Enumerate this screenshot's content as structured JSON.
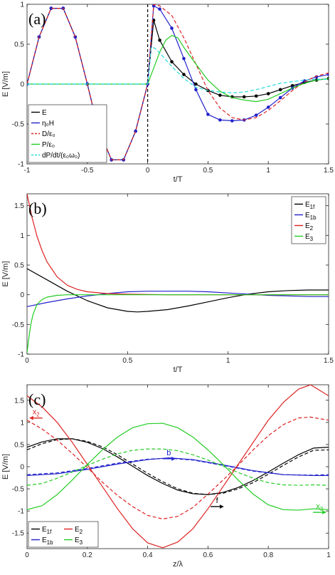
{
  "chart_data": [
    {
      "panel_label": "(a)",
      "type": "line",
      "xlabel": "t/T",
      "ylabel": "E [V/m]",
      "xlim": [
        -1,
        1.5
      ],
      "ylim": [
        -1,
        1
      ],
      "xticks": [
        "-1",
        "-0.5",
        "0",
        "0.5",
        "1",
        "1.5"
      ],
      "yticks": [
        "-1",
        "-0.5",
        "0",
        "0.5",
        "1"
      ],
      "grid": false,
      "legend_position": "lower-left",
      "vertical_marker": {
        "x": 0,
        "style": "dashed",
        "color": "#000000"
      },
      "series": [
        {
          "name": "E",
          "color": "#000000",
          "style": "solid",
          "marker": "dot",
          "x": [
            -1,
            -0.9,
            -0.8,
            -0.7,
            -0.6,
            -0.5,
            -0.45,
            -0.4,
            -0.3,
            -0.2,
            -0.1,
            0,
            0.05,
            0.1,
            0.2,
            0.3,
            0.4,
            0.5,
            0.6,
            0.7,
            0.8,
            0.9,
            1,
            1.1,
            1.2,
            1.3,
            1.4,
            1.5
          ],
          "y": [
            0,
            0.59,
            0.95,
            0.95,
            0.59,
            0,
            -0.31,
            -0.59,
            -0.95,
            -0.95,
            -0.59,
            0,
            0.8,
            0.55,
            0.28,
            0.12,
            0,
            -0.08,
            -0.14,
            -0.16,
            -0.16,
            -0.15,
            -0.12,
            -0.07,
            -0.02,
            0.02,
            0.05,
            0.07
          ]
        },
        {
          "name": "η₀H",
          "color": "#2222cc",
          "style": "solid",
          "marker": "dot",
          "x": [
            -1,
            -0.9,
            -0.8,
            -0.7,
            -0.6,
            -0.5,
            -0.45,
            -0.4,
            -0.3,
            -0.2,
            -0.1,
            0,
            0.05,
            0.1,
            0.2,
            0.3,
            0.4,
            0.5,
            0.6,
            0.7,
            0.8,
            0.9,
            1,
            1.1,
            1.2,
            1.3,
            1.4,
            1.5
          ],
          "y": [
            0,
            0.59,
            0.95,
            0.95,
            0.59,
            0,
            -0.31,
            -0.59,
            -0.95,
            -0.95,
            -0.59,
            0,
            0.98,
            0.94,
            0.7,
            0.32,
            -0.07,
            -0.38,
            -0.45,
            -0.46,
            -0.45,
            -0.39,
            -0.29,
            -0.17,
            -0.05,
            0.04,
            0.09,
            0.12
          ]
        },
        {
          "name": "D/ε₀",
          "color": "#dd2222",
          "style": "dashed",
          "x": [
            -1,
            -0.9,
            -0.8,
            -0.7,
            -0.6,
            -0.5,
            -0.45,
            -0.4,
            -0.3,
            -0.2,
            -0.1,
            0,
            0.05,
            0.1,
            0.2,
            0.3,
            0.4,
            0.5,
            0.6,
            0.7,
            0.8,
            0.9,
            1,
            1.1,
            1.2,
            1.3,
            1.4,
            1.5
          ],
          "y": [
            0,
            0.59,
            0.95,
            0.95,
            0.59,
            0,
            -0.31,
            -0.59,
            -0.95,
            -0.95,
            -0.59,
            0,
            1.0,
            0.98,
            0.86,
            0.58,
            0.25,
            -0.08,
            -0.3,
            -0.42,
            -0.45,
            -0.42,
            -0.33,
            -0.21,
            -0.08,
            0.03,
            0.1,
            0.14
          ]
        },
        {
          "name": "P/ε₀",
          "color": "#22cc22",
          "style": "solid",
          "x": [
            -1,
            0,
            0.05,
            0.1,
            0.15,
            0.2,
            0.25,
            0.3,
            0.4,
            0.5,
            0.6,
            0.7,
            0.8,
            0.9,
            1,
            1.1,
            1.2,
            1.3,
            1.4,
            1.5
          ],
          "y": [
            0,
            0,
            0.2,
            0.4,
            0.55,
            0.61,
            0.58,
            0.46,
            0.25,
            0.05,
            -0.09,
            -0.17,
            -0.2,
            -0.22,
            -0.19,
            -0.12,
            -0.05,
            0.01,
            0.05,
            0.07
          ]
        },
        {
          "name": "dP/dt/(ε₀ω₀)",
          "color": "#22dddd",
          "style": "dashed",
          "x": [
            -1,
            0,
            0.03,
            0.06,
            0.1,
            0.2,
            0.3,
            0.4,
            0.5,
            0.6,
            0.7,
            0.8,
            0.9,
            1,
            1.1,
            1.2,
            1.3,
            1.4,
            1.5
          ],
          "y": [
            0,
            0,
            0.46,
            0.45,
            0.39,
            0.22,
            0.07,
            -0.04,
            -0.08,
            -0.1,
            -0.11,
            -0.1,
            -0.07,
            -0.03,
            0.01,
            0.03,
            0.05,
            0.06,
            0.06
          ]
        }
      ]
    },
    {
      "panel_label": "(b)",
      "type": "line",
      "xlabel": "t/T",
      "ylabel": "E [V/m]",
      "xlim": [
        0,
        1.5
      ],
      "ylim": [
        -1,
        1.7
      ],
      "xticks": [
        "0",
        "0.5",
        "1",
        "1.5"
      ],
      "yticks": [
        "-1",
        "-0.5",
        "0",
        "0.5",
        "1",
        "1.5"
      ],
      "grid": false,
      "legend_position": "top-right",
      "series": [
        {
          "name": "E1f",
          "label_main": "E",
          "label_sub": "1f",
          "color": "#000000",
          "x": [
            0,
            0.1,
            0.2,
            0.3,
            0.4,
            0.5,
            0.55,
            0.6,
            0.7,
            0.8,
            0.9,
            1,
            1.1,
            1.2,
            1.3,
            1.4,
            1.5
          ],
          "y": [
            0.44,
            0.25,
            0.06,
            -0.1,
            -0.22,
            -0.28,
            -0.29,
            -0.28,
            -0.25,
            -0.19,
            -0.12,
            -0.05,
            0.01,
            0.05,
            0.07,
            0.08,
            0.08
          ]
        },
        {
          "name": "E1b",
          "label_main": "E",
          "label_sub": "1b",
          "color": "#2222cc",
          "x": [
            0,
            0.1,
            0.2,
            0.3,
            0.4,
            0.5,
            0.6,
            0.7,
            0.8,
            0.9,
            1,
            1.1,
            1.2,
            1.3,
            1.4,
            1.5
          ],
          "y": [
            -0.2,
            -0.13,
            -0.07,
            -0.02,
            0.02,
            0.05,
            0.06,
            0.06,
            0.06,
            0.05,
            0.03,
            0.01,
            -0.01,
            -0.02,
            -0.03,
            -0.03
          ]
        },
        {
          "name": "E2",
          "label_main": "E",
          "label_sub": "2",
          "color": "#dd2222",
          "x": [
            0,
            0.025,
            0.05,
            0.075,
            0.1,
            0.15,
            0.2,
            0.25,
            0.3,
            0.4,
            0.5,
            0.7,
            1,
            1.5
          ],
          "y": [
            1.7,
            1.3,
            0.98,
            0.74,
            0.55,
            0.3,
            0.16,
            0.09,
            0.05,
            0.02,
            0.01,
            0,
            0,
            0
          ]
        },
        {
          "name": "E3",
          "label_main": "E",
          "label_sub": "3",
          "color": "#22cc22",
          "x": [
            0,
            0.01,
            0.02,
            0.03,
            0.05,
            0.075,
            0.1,
            0.15,
            0.2,
            0.3,
            0.4,
            0.5,
            0.7,
            1,
            1.5
          ],
          "y": [
            -0.98,
            -0.7,
            -0.48,
            -0.33,
            -0.16,
            -0.08,
            -0.04,
            -0.01,
            0,
            0,
            0,
            0,
            0,
            0,
            0
          ]
        }
      ]
    },
    {
      "panel_label": "(c)",
      "type": "line",
      "xlabel": "z/λ",
      "ylabel": "E [V/m]",
      "xlim": [
        0,
        1
      ],
      "ylim": [
        -1.85,
        1.85
      ],
      "xticks": [
        "0",
        "0.2",
        "0.4",
        "0.6",
        "0.8",
        "1"
      ],
      "yticks": [
        "-1.5",
        "-1",
        "-0.5",
        "0",
        "0.5",
        "1",
        "1.5"
      ],
      "grid": false,
      "legend_position": "lower-left",
      "legend_columns": 2,
      "series": [
        {
          "name": "E1f",
          "label_main": "E",
          "label_sub": "1f",
          "color": "#000000",
          "style": "solid",
          "x": [
            0,
            0.05,
            0.1,
            0.15,
            0.2,
            0.25,
            0.3,
            0.35,
            0.4,
            0.45,
            0.5,
            0.55,
            0.6,
            0.65,
            0.7,
            0.75,
            0.8,
            0.85,
            0.9,
            0.95,
            1
          ],
          "y": [
            0.44,
            0.56,
            0.63,
            0.63,
            0.55,
            0.41,
            0.22,
            0.01,
            -0.2,
            -0.38,
            -0.53,
            -0.61,
            -0.63,
            -0.58,
            -0.47,
            -0.31,
            -0.12,
            0.08,
            0.27,
            0.42,
            0.44
          ]
        },
        {
          "name": "E1f-dashed",
          "color": "#000000",
          "style": "dashed",
          "x": [
            0,
            0.05,
            0.1,
            0.15,
            0.2,
            0.25,
            0.3,
            0.35,
            0.4,
            0.45,
            0.5,
            0.55,
            0.6,
            0.65,
            0.7,
            0.75,
            0.8,
            0.85,
            0.9,
            0.95,
            1
          ],
          "y": [
            0.38,
            0.52,
            0.61,
            0.63,
            0.57,
            0.45,
            0.27,
            0.06,
            -0.15,
            -0.34,
            -0.5,
            -0.6,
            -0.63,
            -0.6,
            -0.5,
            -0.36,
            -0.17,
            0.03,
            0.22,
            0.37,
            0.38
          ]
        },
        {
          "name": "E1b",
          "label_main": "E",
          "label_sub": "1b",
          "color": "#2222cc",
          "style": "solid",
          "x": [
            0,
            0.1,
            0.2,
            0.3,
            0.4,
            0.47,
            0.55,
            0.65,
            0.75,
            0.85,
            0.95,
            1
          ],
          "y": [
            -0.2,
            -0.16,
            -0.06,
            0.06,
            0.16,
            0.2,
            0.16,
            0.04,
            -0.09,
            -0.18,
            -0.2,
            -0.2
          ]
        },
        {
          "name": "E1b-dashed",
          "color": "#2222cc",
          "style": "dashed",
          "x": [
            0,
            0.1,
            0.2,
            0.3,
            0.4,
            0.47,
            0.55,
            0.65,
            0.75,
            0.85,
            0.95,
            1
          ],
          "y": [
            -0.18,
            -0.14,
            -0.04,
            0.08,
            0.17,
            0.19,
            0.15,
            0.03,
            -0.1,
            -0.18,
            -0.19,
            -0.18
          ]
        },
        {
          "name": "E2",
          "label_main": "E",
          "label_sub": "2",
          "color": "#dd2222",
          "style": "solid",
          "x": [
            0,
            0.05,
            0.1,
            0.15,
            0.2,
            0.25,
            0.3,
            0.35,
            0.4,
            0.45,
            0.5,
            0.55,
            0.6,
            0.65,
            0.7,
            0.75,
            0.8,
            0.85,
            0.9,
            0.94,
            1
          ],
          "y": [
            1.6,
            1.35,
            1.0,
            0.55,
            0.05,
            -0.45,
            -0.95,
            -1.4,
            -1.72,
            -1.83,
            -1.7,
            -1.4,
            -0.95,
            -0.45,
            0.05,
            0.55,
            1.05,
            1.45,
            1.75,
            1.85,
            1.6
          ]
        },
        {
          "name": "E2-dashed",
          "color": "#dd2222",
          "style": "dashed",
          "x": [
            0,
            0.05,
            0.1,
            0.15,
            0.2,
            0.25,
            0.3,
            0.35,
            0.4,
            0.45,
            0.5,
            0.55,
            0.6,
            0.65,
            0.7,
            0.75,
            0.8,
            0.85,
            0.9,
            0.94,
            1
          ],
          "y": [
            1.05,
            0.85,
            0.6,
            0.3,
            -0.02,
            -0.35,
            -0.65,
            -0.9,
            -1.1,
            -1.18,
            -1.12,
            -0.92,
            -0.62,
            -0.3,
            0.03,
            0.38,
            0.7,
            0.95,
            1.1,
            1.12,
            1.05
          ]
        },
        {
          "name": "E3",
          "label_main": "E",
          "label_sub": "3",
          "color": "#22cc22",
          "style": "solid",
          "x": [
            0,
            0.05,
            0.1,
            0.15,
            0.2,
            0.25,
            0.3,
            0.35,
            0.4,
            0.45,
            0.5,
            0.55,
            0.6,
            0.65,
            0.7,
            0.75,
            0.8,
            0.85,
            0.9,
            0.95,
            1
          ],
          "y": [
            -0.97,
            -0.88,
            -0.63,
            -0.3,
            0.05,
            0.38,
            0.67,
            0.88,
            0.97,
            0.98,
            0.88,
            0.67,
            0.38,
            0.05,
            -0.3,
            -0.62,
            -0.86,
            -0.97,
            -0.98,
            -0.95,
            -0.97
          ]
        },
        {
          "name": "E3-dashed",
          "color": "#22cc22",
          "style": "dashed",
          "x": [
            0,
            0.05,
            0.1,
            0.15,
            0.2,
            0.25,
            0.3,
            0.35,
            0.4,
            0.45,
            0.5,
            0.55,
            0.6,
            0.65,
            0.7,
            0.75,
            0.8,
            0.85,
            0.9,
            0.95,
            1
          ],
          "y": [
            -0.42,
            -0.38,
            -0.26,
            -0.12,
            0.03,
            0.17,
            0.29,
            0.37,
            0.4,
            0.4,
            0.36,
            0.27,
            0.15,
            0.01,
            -0.13,
            -0.26,
            -0.36,
            -0.41,
            -0.42,
            -0.41,
            -0.42
          ]
        }
      ],
      "annotations": [
        {
          "text": "x",
          "sub": "2",
          "color": "#dd2222",
          "x": 0.03,
          "y": 1.18,
          "arrow": "left"
        },
        {
          "text": "b",
          "color": "#2222cc",
          "x": 0.47,
          "y": 0.26,
          "arrow": "right"
        },
        {
          "text": "f",
          "color": "#000000",
          "x": 0.63,
          "y": -0.82,
          "arrow": "right"
        },
        {
          "text": "x",
          "sub": "3",
          "color": "#22cc22",
          "x": 0.97,
          "y": -0.95,
          "arrow": "right"
        }
      ]
    }
  ]
}
